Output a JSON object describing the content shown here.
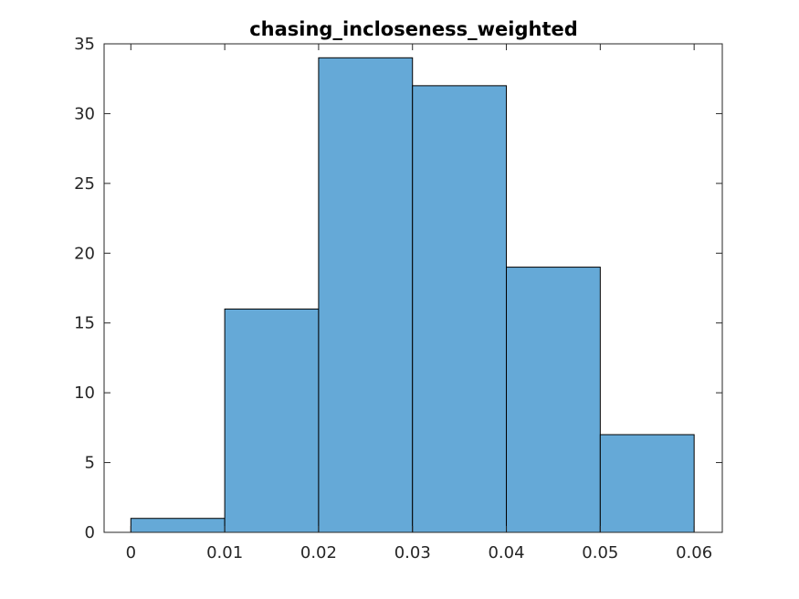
{
  "chart_data": {
    "type": "bar",
    "title": "chasing_incloseness_weighted",
    "xlabel": "",
    "ylabel": "",
    "bin_edges": [
      0,
      0.01,
      0.02,
      0.03,
      0.04,
      0.05,
      0.06
    ],
    "values": [
      1,
      16,
      34,
      32,
      19,
      7
    ],
    "xlim": [
      -0.00285,
      0.063
    ],
    "ylim": [
      0,
      35
    ],
    "xticks": [
      0,
      0.01,
      0.02,
      0.03,
      0.04,
      0.05,
      0.06
    ],
    "xtick_labels": [
      "0",
      "0.01",
      "0.02",
      "0.03",
      "0.04",
      "0.05",
      "0.06"
    ],
    "yticks": [
      0,
      5,
      10,
      15,
      20,
      25,
      30,
      35
    ],
    "ytick_labels": [
      "0",
      "5",
      "10",
      "15",
      "20",
      "25",
      "30",
      "35"
    ],
    "grid": false,
    "bar_color": "#65a9d7",
    "edge_color": "#000000"
  }
}
